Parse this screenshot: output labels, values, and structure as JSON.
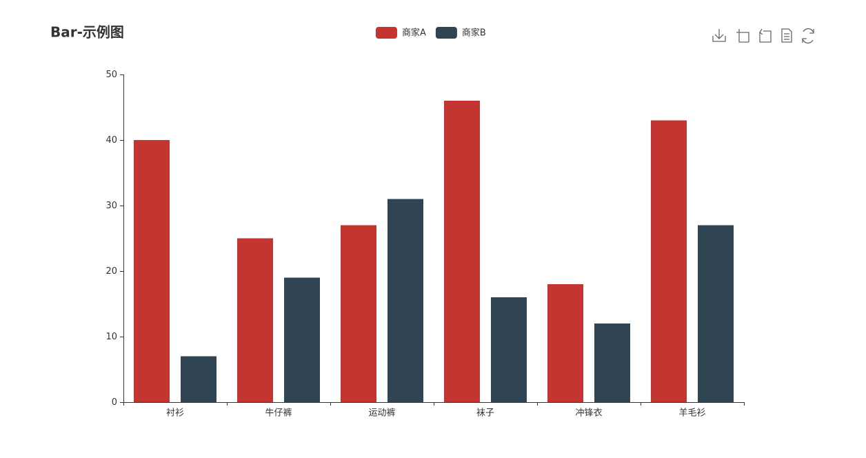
{
  "chart_data": {
    "type": "bar",
    "title": "Bar-示例图",
    "categories": [
      "衬衫",
      "牛仔裤",
      "运动裤",
      "袜子",
      "冲锋衣",
      "羊毛衫"
    ],
    "series": [
      {
        "name": "商家A",
        "color": "#c23531",
        "values": [
          40,
          25,
          27,
          46,
          18,
          43
        ]
      },
      {
        "name": "商家B",
        "color": "#2f4554",
        "values": [
          7,
          19,
          31,
          16,
          12,
          27
        ]
      }
    ],
    "ylim": [
      0,
      50
    ],
    "yticks": [
      0,
      10,
      20,
      30,
      40,
      50
    ],
    "grid": false,
    "legend": "top"
  }
}
